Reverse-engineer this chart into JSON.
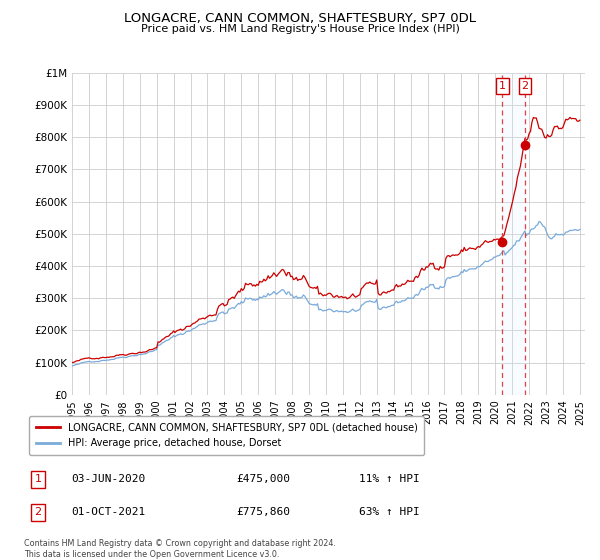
{
  "title": "LONGACRE, CANN COMMON, SHAFTESBURY, SP7 0DL",
  "subtitle": "Price paid vs. HM Land Registry's House Price Index (HPI)",
  "ylim": [
    0,
    1000000
  ],
  "yticks": [
    0,
    100000,
    200000,
    300000,
    400000,
    500000,
    600000,
    700000,
    800000,
    900000,
    1000000
  ],
  "ytick_labels": [
    "£0",
    "£100K",
    "£200K",
    "£300K",
    "£400K",
    "£500K",
    "£600K",
    "£700K",
    "£800K",
    "£900K",
    "£1M"
  ],
  "xlim_start": 1995.0,
  "xlim_end": 2025.3,
  "xtick_years": [
    1995,
    1996,
    1997,
    1998,
    1999,
    2000,
    2001,
    2002,
    2003,
    2004,
    2005,
    2006,
    2007,
    2008,
    2009,
    2010,
    2011,
    2012,
    2013,
    2014,
    2015,
    2016,
    2017,
    2018,
    2019,
    2020,
    2021,
    2022,
    2023,
    2024,
    2025
  ],
  "legend_line1": "LONGACRE, CANN COMMON, SHAFTESBURY, SP7 0DL (detached house)",
  "legend_line2": "HPI: Average price, detached house, Dorset",
  "legend_color1": "#cc0000",
  "legend_color2": "#7aabdb",
  "sale1_label": "1",
  "sale1_date": "03-JUN-2020",
  "sale1_price": "£475,000",
  "sale1_hpi": "11% ↑ HPI",
  "sale2_label": "2",
  "sale2_date": "01-OCT-2021",
  "sale2_price": "£775,860",
  "sale2_hpi": "63% ↑ HPI",
  "footer": "Contains HM Land Registry data © Crown copyright and database right 2024.\nThis data is licensed under the Open Government Licence v3.0.",
  "sale1_x": 2020.42,
  "sale1_y": 475000,
  "sale2_x": 2021.75,
  "sale2_y": 775860,
  "hpi_line_color": "#7aabdb",
  "price_line_color": "#cc0000",
  "grid_color": "#cccccc",
  "bg_color": "#ffffff",
  "shade_color": "#ddeeff"
}
